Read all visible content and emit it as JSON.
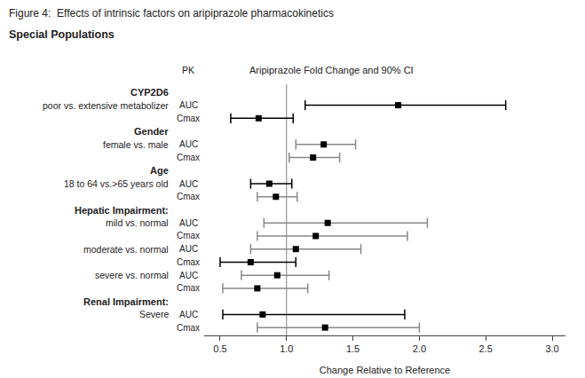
{
  "chart_data": {
    "type": "forest",
    "title": "Figure 4:  Effects of intrinsic factors on aripiprazole pharmacokinetics",
    "subtitle": "Special Populations",
    "annotations": [
      "Aripiprazole Fold Change and 90% CI"
    ],
    "pk_title": "PK",
    "x_label": "Change Relative to Reference",
    "xlim": [
      0.38,
      3.1
    ],
    "xticks": [
      0.5,
      {
        "value": 1.0,
        "label": "1.0"
      },
      1.5,
      {
        "value": 2.0,
        "label": "2.0"
      },
      2.5,
      {
        "value": 3.0,
        "label": "3.0"
      }
    ],
    "ref_line": 1.0,
    "grid": false,
    "tick_labels": "x",
    "categories": [
      "CYP2D6",
      "poor vs. extensive metabolizer",
      null,
      "Gender",
      "female vs. male",
      null,
      "Age",
      "18 to 64 vs.>65 years old",
      null,
      "Hepatic Impairment:",
      "mild vs. normal",
      null,
      "moderate vs. normal",
      null,
      "severe vs. normal",
      null,
      "Renal Impairment:",
      "Severe",
      null
    ],
    "pk": [
      null,
      "AUC",
      "Cmax",
      null,
      "AUC",
      "Cmax",
      null,
      "AUC",
      "Cmax",
      null,
      "AUC",
      "Cmax",
      "AUC",
      "Cmax",
      "AUC",
      "Cmax",
      null,
      "AUC",
      "Cmax"
    ],
    "values": [
      null,
      1.84,
      0.79,
      null,
      1.28,
      1.2,
      null,
      0.87,
      0.92,
      null,
      1.31,
      1.22,
      1.07,
      0.73,
      0.93,
      0.78,
      null,
      0.82,
      1.29
    ],
    "ci_low": [
      null,
      1.14,
      0.58,
      null,
      1.07,
      1.02,
      null,
      0.73,
      0.78,
      null,
      0.83,
      0.78,
      0.73,
      0.5,
      0.66,
      0.52,
      null,
      0.52,
      0.78
    ],
    "ci_high": [
      null,
      2.65,
      1.05,
      null,
      1.52,
      1.4,
      null,
      1.04,
      1.08,
      null,
      2.06,
      1.91,
      1.56,
      1.07,
      1.32,
      1.16,
      null,
      1.89,
      2.0
    ],
    "colors": [
      null,
      "#000000",
      "#000000",
      null,
      "#888888",
      "#888888",
      null,
      "#000000",
      "#888888",
      null,
      "#888888",
      "#888888",
      "#888888",
      "#000000",
      "#888888",
      "#888888",
      null,
      "#000000",
      "#888888"
    ]
  }
}
